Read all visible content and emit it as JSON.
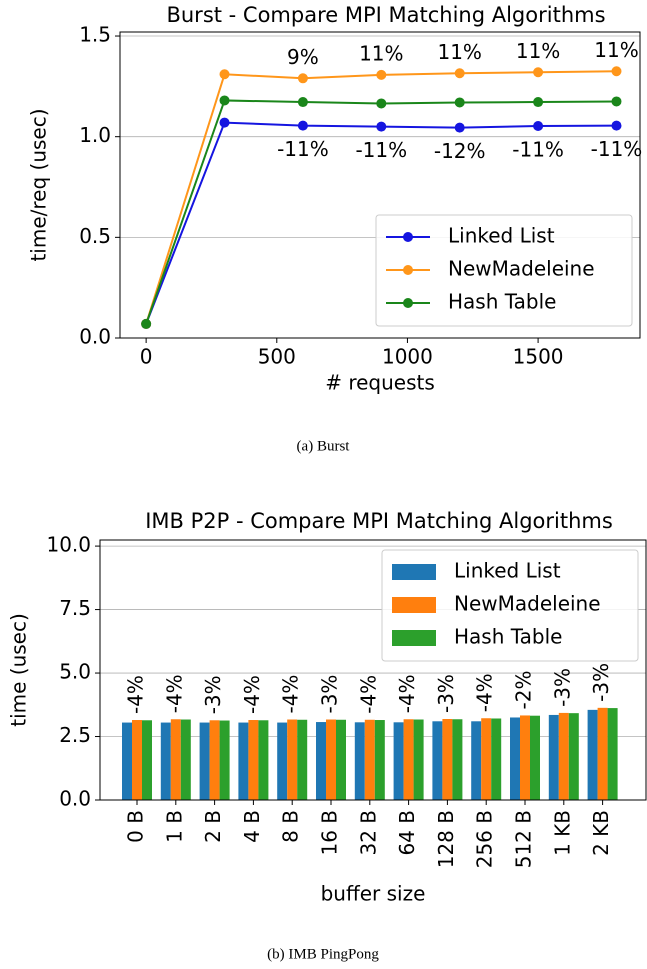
{
  "chart_data": [
    {
      "type": "line",
      "title": "Burst - Compare MPI Matching Algorithms",
      "xlabel": "# requests",
      "ylabel": "time/req (usec)",
      "caption": "(a) Burst",
      "x": [
        0,
        300,
        600,
        900,
        1200,
        1500,
        1800
      ],
      "series": [
        {
          "name": "Linked List",
          "color": "#1515e0",
          "values": [
            0.07,
            1.07,
            1.055,
            1.05,
            1.045,
            1.053,
            1.055
          ]
        },
        {
          "name": "NewMadeleine",
          "color": "#ff961a",
          "values": [
            0.07,
            1.31,
            1.29,
            1.307,
            1.315,
            1.32,
            1.325
          ]
        },
        {
          "name": "Hash Table",
          "color": "#1a861a",
          "values": [
            0.07,
            1.18,
            1.172,
            1.165,
            1.17,
            1.172,
            1.175
          ]
        }
      ],
      "annotations": {
        "above": [
          {
            "x": 600,
            "text": "9%"
          },
          {
            "x": 900,
            "text": "11%"
          },
          {
            "x": 1200,
            "text": "11%"
          },
          {
            "x": 1500,
            "text": "11%"
          },
          {
            "x": 1800,
            "text": "11%"
          }
        ],
        "below": [
          {
            "x": 600,
            "text": "-11%"
          },
          {
            "x": 900,
            "text": "-11%"
          },
          {
            "x": 1200,
            "text": "-12%"
          },
          {
            "x": 1500,
            "text": "-11%"
          },
          {
            "x": 1800,
            "text": "-11%"
          }
        ]
      },
      "xlim": [
        -100,
        1890
      ],
      "xticks": [
        0,
        500,
        1000,
        1500
      ],
      "ylim": [
        0,
        1.52
      ],
      "yticks": [
        {
          "value": 0,
          "label": "0.0"
        },
        {
          "value": 0.5,
          "label": "0.5"
        },
        {
          "value": 1,
          "label": "1.0"
        },
        {
          "value": 1.5,
          "label": "1.5"
        }
      ],
      "grid": true,
      "legend": "lower right"
    },
    {
      "type": "bar",
      "title": "IMB P2P - Compare MPI Matching Algorithms",
      "xlabel": "buffer size",
      "ylabel": "time (usec)",
      "caption": "(b) IMB PingPong",
      "categories": [
        "0 B",
        "1 B",
        "2 B",
        "4 B",
        "8 B",
        "16 B",
        "32 B",
        "64 B",
        "128 B",
        "256 B",
        "512 B",
        "1 KB",
        "2 KB"
      ],
      "series": [
        {
          "name": "Linked List",
          "color": "#1f77b4",
          "values": [
            3.05,
            3.05,
            3.05,
            3.05,
            3.05,
            3.07,
            3.06,
            3.06,
            3.1,
            3.1,
            3.25,
            3.35,
            3.55
          ]
        },
        {
          "name": "NewMadeleine",
          "color": "#ff7f0e",
          "values": [
            3.15,
            3.18,
            3.14,
            3.15,
            3.17,
            3.17,
            3.16,
            3.18,
            3.19,
            3.22,
            3.33,
            3.43,
            3.63
          ]
        },
        {
          "name": "Hash Table",
          "color": "#2ca02c",
          "values": [
            3.14,
            3.17,
            3.13,
            3.14,
            3.16,
            3.16,
            3.15,
            3.17,
            3.18,
            3.21,
            3.32,
            3.42,
            3.62
          ]
        }
      ],
      "annotations": [
        "-4%",
        "-4%",
        "-3%",
        "-4%",
        "-4%",
        "-3%",
        "-4%",
        "-4%",
        "-3%",
        "-4%",
        "-2%",
        "-3%",
        "-3%"
      ],
      "ylim": [
        0,
        10.24
      ],
      "yticks": [
        {
          "value": 0,
          "label": "0.0"
        },
        {
          "value": 2.5,
          "label": "2.5"
        },
        {
          "value": 5,
          "label": "5.0"
        },
        {
          "value": 7.5,
          "label": "7.5"
        },
        {
          "value": 10,
          "label": "10.0"
        }
      ],
      "grid": true,
      "legend": "upper right"
    }
  ]
}
